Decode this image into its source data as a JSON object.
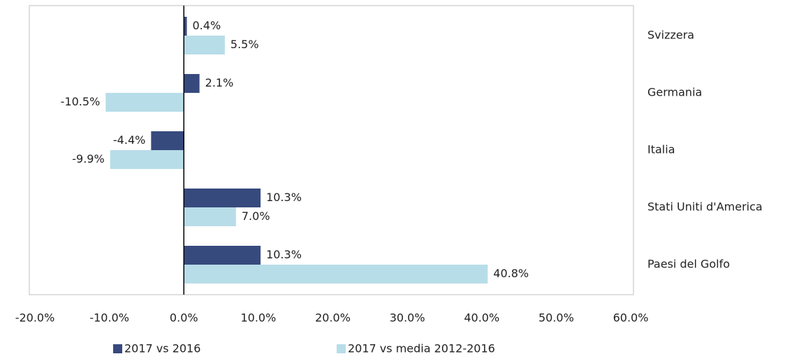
{
  "chart_data": {
    "type": "hbar",
    "categories": [
      "Svizzera",
      "Germania",
      "Italia",
      "Stati Uniti d'America",
      "Paesi del Golfo"
    ],
    "series": [
      {
        "name": "2017 vs 2016",
        "color": "#374a7e",
        "values": [
          0.4,
          2.1,
          -4.4,
          10.3,
          10.3
        ],
        "value_labels": [
          "0.4%",
          "2.1%",
          "-4.4%",
          "10.3%",
          "10.3%"
        ]
      },
      {
        "name": "2017 vs media 2012-2016",
        "color": "#b7dde8",
        "values": [
          5.5,
          -10.5,
          -9.9,
          7.0,
          40.8
        ],
        "value_labels": [
          "5.5%",
          "-10.5%",
          "-9.9%",
          "7.0%",
          "40.8%"
        ]
      }
    ],
    "xlim": [
      -20,
      60
    ],
    "xticks": [
      {
        "value": -20,
        "label": "-20.0%"
      },
      {
        "value": -10,
        "label": "-10.0%"
      },
      {
        "value": 0,
        "label": "0.0%"
      },
      {
        "value": 10,
        "label": "10.0%"
      },
      {
        "value": 20,
        "label": "20.0%"
      },
      {
        "value": 30,
        "label": "30.0%"
      },
      {
        "value": 40,
        "label": "40.0%"
      },
      {
        "value": 50,
        "label": "50.0%"
      },
      {
        "value": 60,
        "label": "60.0%"
      }
    ],
    "legend": "bottom"
  }
}
